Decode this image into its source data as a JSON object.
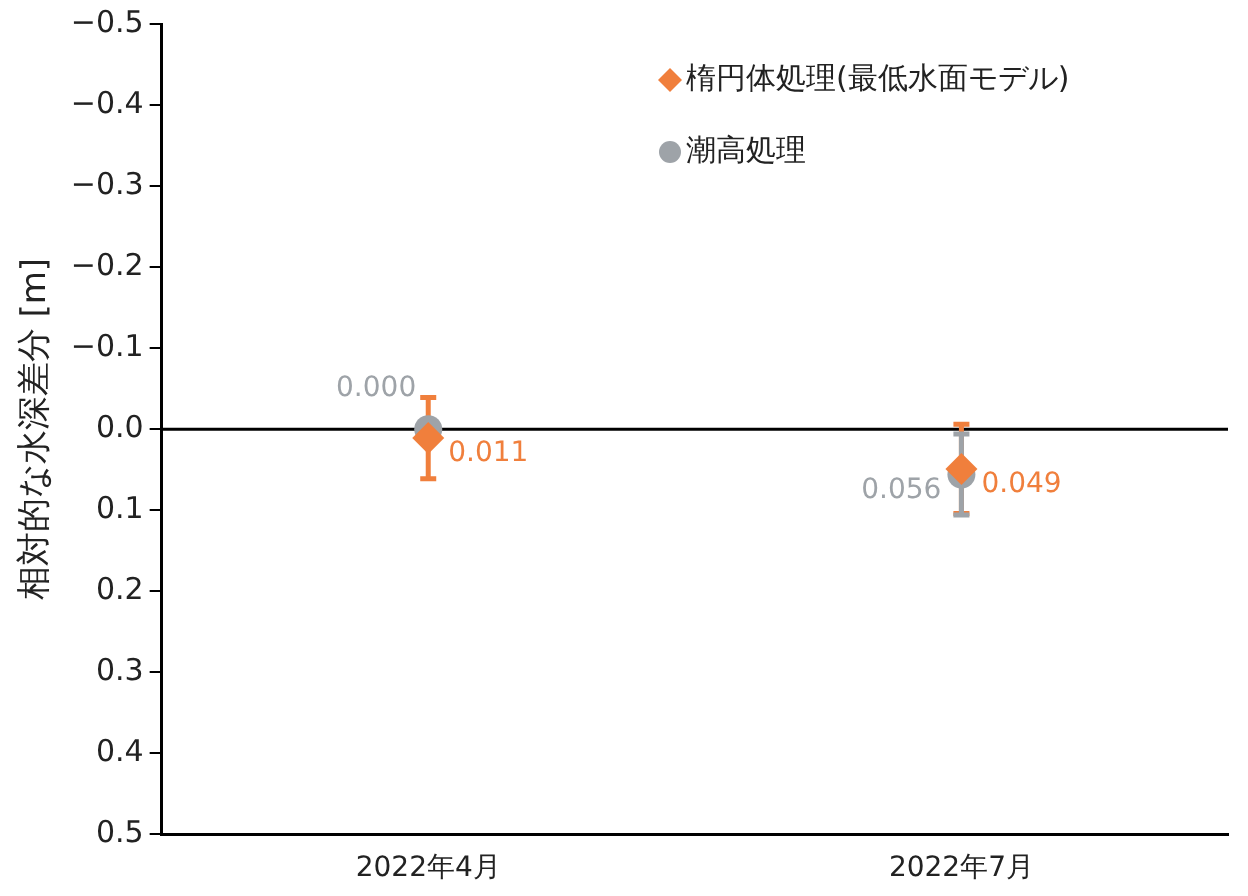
{
  "chart_data": {
    "type": "scatter",
    "ylabel": "相対的な水深差分 [m]",
    "categories": [
      "2022年4月",
      "2022年7月"
    ],
    "series": [
      {
        "name": "楕円体処理(最低水面モデル)",
        "color": "#f07f3c",
        "marker": "diamond",
        "values": [
          0.011,
          0.049
        ],
        "errors": [
          0.05,
          0.055
        ],
        "value_labels": [
          "0.011",
          "0.049"
        ]
      },
      {
        "name": "潮高処理",
        "color": "#9ea3a8",
        "marker": "circle",
        "values": [
          0.0,
          0.056
        ],
        "errors": [
          null,
          0.05
        ],
        "value_labels": [
          "0.000",
          "0.056"
        ]
      }
    ],
    "ylim": [
      0.5,
      -0.5
    ],
    "yticks": [
      {
        "value": -0.5,
        "label": "−0.5"
      },
      {
        "value": -0.4,
        "label": "−0.4"
      },
      {
        "value": -0.3,
        "label": "−0.3"
      },
      {
        "value": -0.2,
        "label": "−0.2"
      },
      {
        "value": -0.1,
        "label": "−0.1"
      },
      {
        "value": 0,
        "label": "0.0"
      },
      0.1,
      0.2,
      0.3,
      0.4,
      0.5
    ],
    "ref_lines": [
      {
        "axis": "y",
        "value": 0,
        "color": "#000000"
      }
    ],
    "grid": false,
    "legend": "top right"
  }
}
